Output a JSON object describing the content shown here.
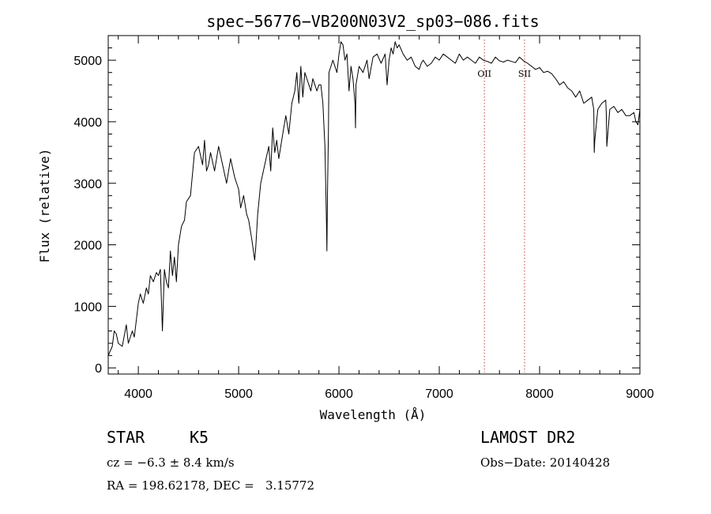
{
  "chart_data": {
    "type": "line",
    "title": "spec−56776−VB200N03V2_sp03−086.fits",
    "xlabel": "Wavelength (Å)",
    "ylabel": "Flux (relative)",
    "xlim": [
      3700,
      9000
    ],
    "ylim": [
      -100,
      5400
    ],
    "xticks": [
      4000,
      5000,
      6000,
      7000,
      8000,
      9000
    ],
    "yticks": [
      0,
      1000,
      2000,
      3000,
      4000,
      5000
    ],
    "grid": false,
    "series": [
      {
        "x": [
          3700,
          3740,
          3760,
          3780,
          3800,
          3840,
          3880,
          3900,
          3940,
          3960,
          4000,
          4020,
          4050,
          4080,
          4100,
          4120,
          4150,
          4180,
          4200,
          4220,
          4240,
          4260,
          4280,
          4300,
          4320,
          4340,
          4360,
          4380,
          4400,
          4430,
          4460,
          4480,
          4520,
          4560,
          4600,
          4640,
          4660,
          4680,
          4700,
          4720,
          4760,
          4800,
          4840,
          4880,
          4920,
          4960,
          5000,
          5020,
          5050,
          5080,
          5100,
          5130,
          5160,
          5170,
          5190,
          5220,
          5260,
          5300,
          5320,
          5340,
          5360,
          5380,
          5400,
          5440,
          5470,
          5500,
          5530,
          5560,
          5580,
          5600,
          5620,
          5640,
          5660,
          5680,
          5700,
          5720,
          5740,
          5760,
          5780,
          5800,
          5820,
          5840,
          5860,
          5875,
          5880,
          5885,
          5895,
          5900,
          5920,
          5940,
          5980,
          6000,
          6020,
          6040,
          6060,
          6080,
          6100,
          6120,
          6140,
          6160,
          6165,
          6170,
          6200,
          6240,
          6280,
          6300,
          6340,
          6380,
          6420,
          6460,
          6480,
          6500,
          6520,
          6540,
          6560,
          6580,
          6600,
          6640,
          6680,
          6720,
          6760,
          6800,
          6820,
          6840,
          6880,
          6920,
          6960,
          7000,
          7040,
          7080,
          7120,
          7160,
          7200,
          7240,
          7280,
          7320,
          7360,
          7400,
          7440,
          7480,
          7520,
          7560,
          7600,
          7640,
          7680,
          7720,
          7760,
          7800,
          7840,
          7880,
          7920,
          7960,
          8000,
          8040,
          8080,
          8120,
          8160,
          8200,
          8240,
          8280,
          8320,
          8360,
          8400,
          8440,
          8480,
          8520,
          8540,
          8545,
          8550,
          8580,
          8620,
          8660,
          8665,
          8670,
          8700,
          8740,
          8780,
          8820,
          8860,
          8900,
          8940,
          8960,
          8980,
          9000
        ],
        "values": [
          200,
          350,
          600,
          550,
          400,
          350,
          700,
          400,
          600,
          500,
          1050,
          1200,
          1050,
          1300,
          1200,
          1500,
          1400,
          1550,
          1500,
          1600,
          600,
          1600,
          1400,
          1300,
          1900,
          1500,
          1800,
          1400,
          2000,
          2300,
          2400,
          2700,
          2800,
          3500,
          3600,
          3300,
          3700,
          3200,
          3300,
          3500,
          3200,
          3600,
          3300,
          3000,
          3400,
          3100,
          2900,
          2600,
          2800,
          2500,
          2400,
          2100,
          1750,
          1950,
          2500,
          3000,
          3300,
          3600,
          3200,
          3900,
          3500,
          3700,
          3400,
          3800,
          4100,
          3800,
          4300,
          4500,
          4800,
          4300,
          4900,
          4400,
          4800,
          4700,
          4600,
          4500,
          4700,
          4600,
          4500,
          4600,
          4600,
          4300,
          3600,
          2400,
          1900,
          2800,
          3800,
          4800,
          4900,
          5000,
          4800,
          5100,
          5300,
          5250,
          5000,
          5100,
          4500,
          4900,
          4700,
          4300,
          3900,
          4600,
          4900,
          4800,
          5000,
          4700,
          5050,
          5100,
          4950,
          5100,
          4600,
          5000,
          5200,
          5100,
          5300,
          5200,
          5250,
          5100,
          5000,
          5050,
          4900,
          4850,
          4950,
          5000,
          4900,
          4950,
          5050,
          5000,
          5100,
          5050,
          5000,
          4950,
          5100,
          5000,
          5050,
          5000,
          4950,
          5050,
          5000,
          4980,
          4950,
          5050,
          4990,
          4970,
          5000,
          4980,
          4960,
          5050,
          4990,
          4950,
          4900,
          4850,
          4880,
          4800,
          4820,
          4780,
          4700,
          4600,
          4650,
          4550,
          4500,
          4400,
          4500,
          4300,
          4350,
          4400,
          4200,
          3500,
          3700,
          4200,
          4300,
          4350,
          4100,
          3600,
          4200,
          4250,
          4150,
          4200,
          4100,
          4100,
          4150,
          4000,
          3950,
          4200
        ]
      }
    ],
    "annotations": [
      {
        "label": "OII",
        "x": 7450
      },
      {
        "label": "SII",
        "x": 7850
      }
    ]
  },
  "info": {
    "class_label": "STAR",
    "subclass_label": "K5",
    "survey_label": "LAMOST DR2",
    "cz_text": "cz = −6.3 ± 8.4 km/s",
    "obs_date_text": "Obs−Date: 20140428",
    "coords_text": "RA = 198.62178, DEC =   3.15772"
  }
}
